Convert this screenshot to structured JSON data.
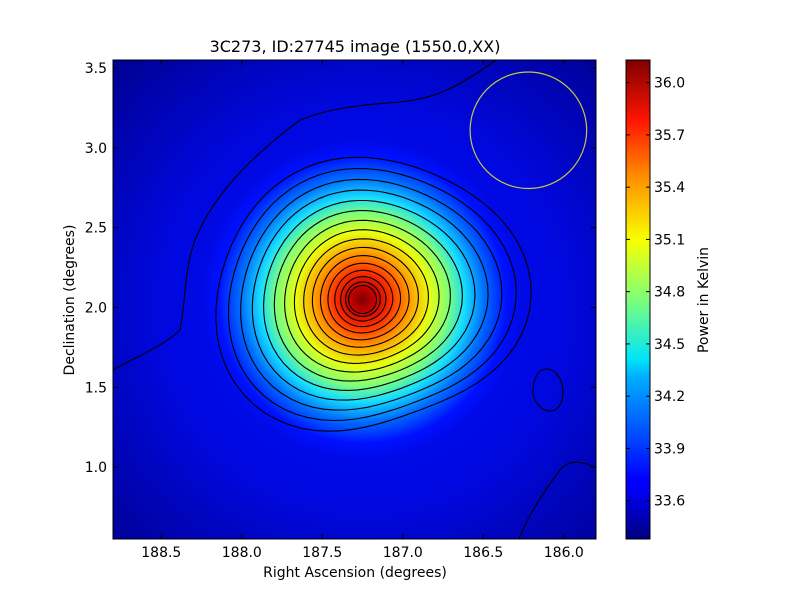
{
  "chart_data": {
    "type": "heatmap",
    "title": "3C273, ID:27745 image (1550.0,XX)",
    "xlabel": "Right Ascension (degrees)",
    "ylabel": "Declination (degrees)",
    "xlim": [
      188.8,
      185.8
    ],
    "ylim": [
      0.55,
      3.55
    ],
    "x_ticks": [
      188.5,
      188.0,
      187.5,
      187.0,
      186.5,
      186.0
    ],
    "x_tick_labels": [
      "188.5",
      "188.0",
      "187.5",
      "187.0",
      "186.5",
      "186.0"
    ],
    "y_ticks": [
      1.0,
      1.5,
      2.0,
      2.5,
      3.0,
      3.5
    ],
    "y_tick_labels": [
      "1.0",
      "1.5",
      "2.0",
      "2.5",
      "3.0",
      "3.5"
    ],
    "colormap": "jet",
    "colorbar": {
      "label": "Power in Kelvin",
      "range": [
        33.38,
        36.13
      ],
      "ticks": [
        33.6,
        33.9,
        34.2,
        34.5,
        34.8,
        35.1,
        35.4,
        35.7,
        36.0
      ],
      "tick_labels": [
        "33.6",
        "33.9",
        "34.2",
        "34.5",
        "34.8",
        "35.1",
        "35.4",
        "35.7",
        "36.0"
      ]
    },
    "source": {
      "ra": 187.25,
      "dec": 2.05,
      "peak": 36.13,
      "background": 33.4
    },
    "beam_circle": {
      "ra": 186.22,
      "dec": 3.11,
      "radius_deg": 0.365,
      "color": "#c8c83c"
    },
    "contours": {
      "color": "#000000",
      "count": 16
    },
    "grid": false
  }
}
